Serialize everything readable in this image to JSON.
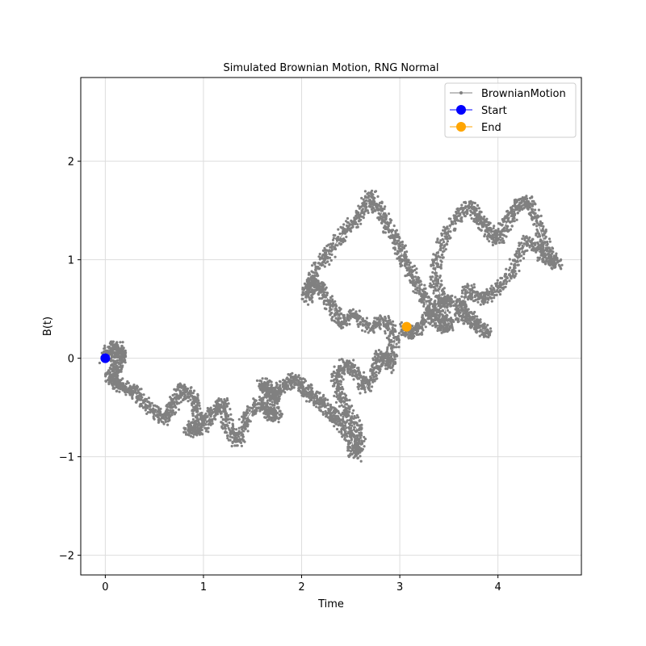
{
  "chart_data": {
    "type": "scatter",
    "title": "Simulated Brownian Motion, RNG Normal",
    "xlabel": "Time",
    "ylabel": "B(t)",
    "xlim": [
      -0.25,
      4.85
    ],
    "ylim": [
      -2.2,
      2.85
    ],
    "xticks": [
      0,
      1,
      2,
      3,
      4
    ],
    "yticks": [
      -2,
      -1,
      0,
      1,
      2
    ],
    "xtick_labels": [
      "0",
      "1",
      "2",
      "3",
      "4"
    ],
    "ytick_labels": [
      "−2",
      "−1",
      "0",
      "1",
      "2"
    ],
    "grid": true,
    "legend_position": "top-right",
    "series": [
      {
        "name": "BrownianMotion",
        "color": "#808080",
        "marker": "small-dot-line",
        "x": [
          0.0,
          0.05,
          0.12,
          0.16,
          0.12,
          0.05,
          0.1,
          0.2,
          0.3,
          0.45,
          0.6,
          0.7,
          0.8,
          0.9,
          0.95,
          0.85,
          1.0,
          1.1,
          1.2,
          1.25,
          1.35,
          1.45,
          1.55,
          1.65,
          1.75,
          1.7,
          1.6,
          1.7,
          1.8,
          1.9,
          2.0,
          2.1,
          2.2,
          2.3,
          2.4,
          2.5,
          2.55,
          2.6,
          2.5,
          2.4,
          2.35,
          2.45,
          2.55,
          2.65,
          2.75,
          2.8,
          2.9,
          2.95,
          2.85,
          2.7,
          2.55,
          2.4,
          2.3,
          2.2,
          2.1,
          2.05,
          2.15,
          2.3,
          2.45,
          2.6,
          2.7,
          2.8,
          2.9,
          3.0,
          3.1,
          3.2,
          3.3,
          3.4,
          3.5,
          3.45,
          3.35,
          3.4,
          3.55,
          3.7,
          3.8,
          3.9,
          4.0,
          4.1,
          4.2,
          4.3,
          4.4,
          4.5,
          4.6,
          4.45,
          4.3,
          4.15,
          4.0,
          3.85,
          3.7,
          3.6,
          3.75,
          3.9,
          3.7,
          3.5,
          3.35,
          3.2,
          3.1,
          3.05
        ],
        "y": [
          0.0,
          0.08,
          0.12,
          0.02,
          -0.1,
          -0.18,
          -0.25,
          -0.3,
          -0.35,
          -0.5,
          -0.62,
          -0.45,
          -0.3,
          -0.4,
          -0.62,
          -0.75,
          -0.7,
          -0.55,
          -0.45,
          -0.7,
          -0.85,
          -0.6,
          -0.45,
          -0.55,
          -0.6,
          -0.35,
          -0.25,
          -0.4,
          -0.3,
          -0.2,
          -0.28,
          -0.38,
          -0.45,
          -0.55,
          -0.65,
          -0.8,
          -1.0,
          -0.8,
          -0.6,
          -0.4,
          -0.2,
          -0.05,
          -0.15,
          -0.3,
          -0.1,
          0.05,
          -0.1,
          0.2,
          0.4,
          0.3,
          0.45,
          0.35,
          0.55,
          0.7,
          0.8,
          0.6,
          0.9,
          1.1,
          1.3,
          1.45,
          1.65,
          1.5,
          1.3,
          1.1,
          0.9,
          0.7,
          0.5,
          0.35,
          0.3,
          0.55,
          0.8,
          1.1,
          1.4,
          1.55,
          1.45,
          1.3,
          1.2,
          1.4,
          1.55,
          1.6,
          1.4,
          1.1,
          0.95,
          1.05,
          1.2,
          0.9,
          0.7,
          0.6,
          0.7,
          0.45,
          0.35,
          0.25,
          0.45,
          0.6,
          0.5,
          0.3,
          0.25,
          0.32
        ]
      },
      {
        "name": "Start",
        "color": "#0000ff",
        "marker": "large-dot",
        "x": [
          0.0
        ],
        "y": [
          0.0
        ]
      },
      {
        "name": "End",
        "color": "#ffa500",
        "marker": "large-dot",
        "x": [
          3.07
        ],
        "y": [
          0.32
        ]
      }
    ]
  }
}
